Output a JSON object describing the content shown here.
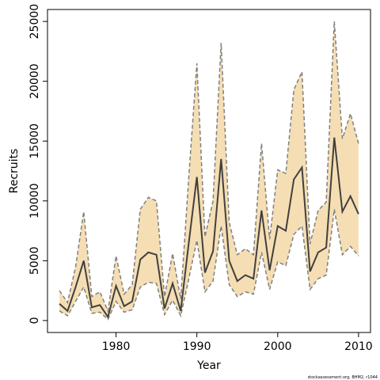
{
  "chart_data": {
    "type": "band-line",
    "xlabel": "Year",
    "ylabel": "Recruits",
    "footnote": "stockassessment.org, BHM2, r1044",
    "x": [
      1973,
      1974,
      1975,
      1976,
      1977,
      1978,
      1979,
      1980,
      1981,
      1982,
      1983,
      1984,
      1985,
      1986,
      1987,
      1988,
      1989,
      1990,
      1991,
      1992,
      1993,
      1994,
      1995,
      1996,
      1997,
      1998,
      1999,
      2000,
      2001,
      2002,
      2003,
      2004,
      2005,
      2006,
      2007,
      2008,
      2009,
      2010
    ],
    "values": [
      1400,
      800,
      2800,
      5000,
      1100,
      1300,
      300,
      2900,
      1200,
      1600,
      5100,
      5700,
      5500,
      1000,
      3100,
      800,
      6500,
      12000,
      4000,
      5800,
      13500,
      5000,
      3300,
      3800,
      3500,
      9200,
      4200,
      7900,
      7500,
      11800,
      12800,
      4100,
      5700,
      6100,
      15300,
      9100,
      10400,
      8900
    ],
    "upper": [
      2500,
      1500,
      4500,
      9100,
      2000,
      2400,
      800,
      5400,
      2200,
      3000,
      9300,
      10300,
      10000,
      2000,
      5600,
      1800,
      12000,
      21500,
      7000,
      10000,
      23200,
      8200,
      5500,
      6000,
      5500,
      14800,
      6800,
      12600,
      12300,
      19300,
      20800,
      6400,
      9200,
      9900,
      25000,
      15200,
      17300,
      14800
    ],
    "lower": [
      800,
      400,
      1600,
      2800,
      600,
      700,
      100,
      1600,
      700,
      900,
      2800,
      3200,
      3100,
      500,
      1700,
      400,
      3500,
      6700,
      2400,
      3300,
      7900,
      3000,
      2000,
      2400,
      2200,
      5700,
      2600,
      4900,
      4600,
      7200,
      7900,
      2600,
      3500,
      3800,
      9300,
      5500,
      6200,
      5400
    ],
    "color": "#404040",
    "band_color": "#f5deb3",
    "band_line_color": "#808080",
    "xlim": [
      1971.52,
      2011.48
    ],
    "xticks": [
      1980,
      1990,
      2000,
      2010
    ],
    "ylim": [
      -1000,
      26000
    ],
    "yticks": [
      0,
      5000,
      10000,
      15000,
      20000,
      25000
    ]
  }
}
